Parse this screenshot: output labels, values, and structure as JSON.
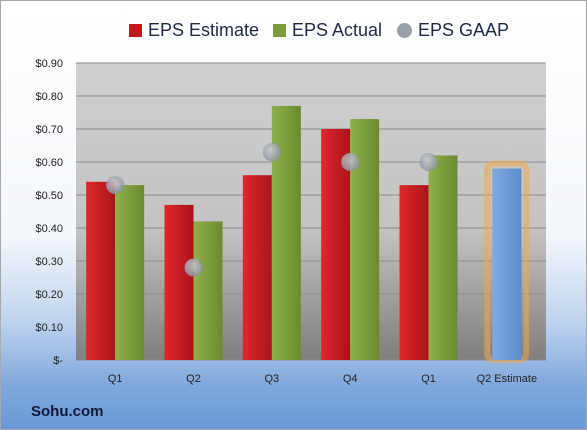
{
  "chart_data": {
    "type": "bar",
    "categories": [
      "Q1",
      "Q2",
      "Q3",
      "Q4",
      "Q1",
      "Q2 Estimate"
    ],
    "series": [
      {
        "name": "EPS Estimate",
        "values": [
          0.54,
          0.47,
          0.56,
          0.7,
          0.53,
          null
        ],
        "color": "#c0191c"
      },
      {
        "name": "EPS Actual",
        "values": [
          0.53,
          0.42,
          0.77,
          0.73,
          0.62,
          0.58
        ],
        "color": "#7a9a3c"
      },
      {
        "name": "EPS GAAP",
        "values": [
          0.53,
          0.28,
          0.63,
          0.6,
          0.6,
          null
        ],
        "color": "#9aa0a8"
      }
    ],
    "highlight": {
      "category": "Q2 Estimate",
      "color": "#6b9bd6",
      "glow": "#f3a64a"
    },
    "ylim": [
      0,
      0.9
    ],
    "yticks": [
      0,
      0.1,
      0.2,
      0.3,
      0.4,
      0.5,
      0.6,
      0.7,
      0.8,
      0.9
    ],
    "ytick_labels": [
      "$-",
      "$0.10",
      "$0.20",
      "$0.30",
      "$0.40",
      "$0.50",
      "$0.60",
      "$0.70",
      "$0.80",
      "$0.90"
    ],
    "legend": "top",
    "grid": true
  },
  "footer": {
    "source": "Sohu.com"
  }
}
